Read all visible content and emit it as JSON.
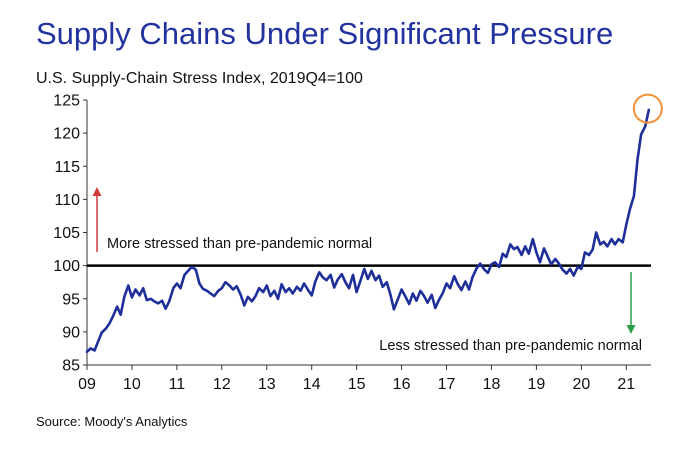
{
  "chart_data": {
    "type": "line",
    "title": "Supply Chains Under Significant Pressure",
    "subtitle": "U.S. Supply-Chain Stress Index, 2019Q4=100",
    "source": "Source: Moody's Analytics",
    "xlim": [
      2009.0,
      2021.55
    ],
    "ylim": [
      85,
      125
    ],
    "y_ticks": [
      85,
      90,
      95,
      100,
      105,
      110,
      115,
      120,
      125
    ],
    "x_ticks": [
      {
        "value": 2009,
        "label": "09"
      },
      {
        "value": 2010,
        "label": "10"
      },
      {
        "value": 2011,
        "label": "11"
      },
      {
        "value": 2012,
        "label": "12"
      },
      {
        "value": 2013,
        "label": "13"
      },
      {
        "value": 2014,
        "label": "14"
      },
      {
        "value": 2015,
        "label": "15"
      },
      {
        "value": 2016,
        "label": "16"
      },
      {
        "value": 2017,
        "label": "17"
      },
      {
        "value": 2018,
        "label": "18"
      },
      {
        "value": 2019,
        "label": "19"
      },
      {
        "value": 2020,
        "label": "20"
      },
      {
        "value": 2021,
        "label": "21"
      }
    ],
    "reference_line": {
      "y": 100
    },
    "annotations": {
      "above": "More stressed than pre-pandemic normal",
      "below": "Less stressed than pre-pandemic normal"
    },
    "series": [
      {
        "color": "#1f2f9a",
        "points": [
          [
            2009.0,
            87.0
          ],
          [
            2009.08,
            87.5
          ],
          [
            2009.17,
            87.2
          ],
          [
            2009.25,
            88.6
          ],
          [
            2009.33,
            89.9
          ],
          [
            2009.42,
            90.5
          ],
          [
            2009.5,
            91.3
          ],
          [
            2009.58,
            92.4
          ],
          [
            2009.67,
            93.8
          ],
          [
            2009.75,
            92.6
          ],
          [
            2009.83,
            95.3
          ],
          [
            2009.92,
            97.0
          ],
          [
            2010.0,
            95.2
          ],
          [
            2010.08,
            96.4
          ],
          [
            2010.17,
            95.5
          ],
          [
            2010.25,
            96.6
          ],
          [
            2010.33,
            94.8
          ],
          [
            2010.42,
            95.0
          ],
          [
            2010.5,
            94.6
          ],
          [
            2010.58,
            94.3
          ],
          [
            2010.67,
            94.7
          ],
          [
            2010.75,
            93.5
          ],
          [
            2010.83,
            94.6
          ],
          [
            2010.92,
            96.6
          ],
          [
            2011.0,
            97.3
          ],
          [
            2011.08,
            96.6
          ],
          [
            2011.17,
            98.6
          ],
          [
            2011.25,
            99.2
          ],
          [
            2011.33,
            99.8
          ],
          [
            2011.42,
            99.4
          ],
          [
            2011.5,
            97.3
          ],
          [
            2011.58,
            96.5
          ],
          [
            2011.67,
            96.2
          ],
          [
            2011.75,
            95.8
          ],
          [
            2011.83,
            95.4
          ],
          [
            2011.92,
            96.2
          ],
          [
            2012.0,
            96.6
          ],
          [
            2012.08,
            97.5
          ],
          [
            2012.17,
            97.0
          ],
          [
            2012.25,
            96.4
          ],
          [
            2012.33,
            96.9
          ],
          [
            2012.42,
            95.6
          ],
          [
            2012.5,
            94.0
          ],
          [
            2012.58,
            95.3
          ],
          [
            2012.67,
            94.6
          ],
          [
            2012.75,
            95.4
          ],
          [
            2012.83,
            96.6
          ],
          [
            2012.92,
            96.0
          ],
          [
            2013.0,
            97.0
          ],
          [
            2013.08,
            95.4
          ],
          [
            2013.17,
            96.2
          ],
          [
            2013.25,
            95.0
          ],
          [
            2013.33,
            97.2
          ],
          [
            2013.42,
            96.0
          ],
          [
            2013.5,
            96.6
          ],
          [
            2013.58,
            95.8
          ],
          [
            2013.67,
            96.8
          ],
          [
            2013.75,
            96.2
          ],
          [
            2013.83,
            97.3
          ],
          [
            2013.92,
            96.3
          ],
          [
            2014.0,
            95.5
          ],
          [
            2014.08,
            97.6
          ],
          [
            2014.17,
            99.0
          ],
          [
            2014.25,
            98.2
          ],
          [
            2014.33,
            97.8
          ],
          [
            2014.42,
            98.6
          ],
          [
            2014.5,
            96.7
          ],
          [
            2014.58,
            97.9
          ],
          [
            2014.67,
            98.7
          ],
          [
            2014.75,
            97.5
          ],
          [
            2014.83,
            96.6
          ],
          [
            2014.92,
            98.6
          ],
          [
            2015.0,
            96.0
          ],
          [
            2015.08,
            97.6
          ],
          [
            2015.17,
            99.5
          ],
          [
            2015.25,
            98.0
          ],
          [
            2015.33,
            99.2
          ],
          [
            2015.42,
            97.8
          ],
          [
            2015.5,
            98.5
          ],
          [
            2015.58,
            96.8
          ],
          [
            2015.67,
            97.5
          ],
          [
            2015.75,
            95.7
          ],
          [
            2015.83,
            93.4
          ],
          [
            2015.92,
            95.0
          ],
          [
            2016.0,
            96.4
          ],
          [
            2016.08,
            95.4
          ],
          [
            2016.17,
            94.2
          ],
          [
            2016.25,
            95.8
          ],
          [
            2016.33,
            94.7
          ],
          [
            2016.42,
            96.2
          ],
          [
            2016.5,
            95.4
          ],
          [
            2016.58,
            94.4
          ],
          [
            2016.67,
            95.6
          ],
          [
            2016.75,
            93.6
          ],
          [
            2016.83,
            94.8
          ],
          [
            2016.92,
            95.9
          ],
          [
            2017.0,
            97.3
          ],
          [
            2017.08,
            96.6
          ],
          [
            2017.17,
            98.4
          ],
          [
            2017.25,
            97.2
          ],
          [
            2017.33,
            96.3
          ],
          [
            2017.42,
            97.6
          ],
          [
            2017.5,
            96.4
          ],
          [
            2017.58,
            98.3
          ],
          [
            2017.67,
            99.6
          ],
          [
            2017.75,
            100.3
          ],
          [
            2017.83,
            99.5
          ],
          [
            2017.92,
            98.9
          ],
          [
            2018.0,
            100.2
          ],
          [
            2018.08,
            100.5
          ],
          [
            2018.17,
            99.8
          ],
          [
            2018.25,
            101.8
          ],
          [
            2018.33,
            101.3
          ],
          [
            2018.42,
            103.2
          ],
          [
            2018.5,
            102.5
          ],
          [
            2018.58,
            102.8
          ],
          [
            2018.67,
            101.6
          ],
          [
            2018.75,
            102.9
          ],
          [
            2018.83,
            101.8
          ],
          [
            2018.92,
            104.0
          ],
          [
            2019.0,
            102.0
          ],
          [
            2019.08,
            100.5
          ],
          [
            2019.17,
            102.6
          ],
          [
            2019.25,
            101.4
          ],
          [
            2019.33,
            100.2
          ],
          [
            2019.42,
            101.0
          ],
          [
            2019.5,
            100.3
          ],
          [
            2019.58,
            99.4
          ],
          [
            2019.67,
            98.8
          ],
          [
            2019.75,
            99.5
          ],
          [
            2019.83,
            98.5
          ],
          [
            2019.92,
            99.8
          ],
          [
            2020.0,
            99.5
          ],
          [
            2020.08,
            102.0
          ],
          [
            2020.17,
            101.6
          ],
          [
            2020.25,
            102.4
          ],
          [
            2020.33,
            105.0
          ],
          [
            2020.42,
            103.2
          ],
          [
            2020.5,
            103.6
          ],
          [
            2020.58,
            102.9
          ],
          [
            2020.67,
            104.0
          ],
          [
            2020.75,
            103.2
          ],
          [
            2020.83,
            104.0
          ],
          [
            2020.92,
            103.5
          ],
          [
            2021.0,
            106.2
          ],
          [
            2021.08,
            108.5
          ],
          [
            2021.17,
            110.5
          ],
          [
            2021.25,
            116.0
          ],
          [
            2021.33,
            119.8
          ],
          [
            2021.42,
            121.0
          ],
          [
            2021.5,
            123.5
          ]
        ]
      }
    ],
    "highlight": {
      "x": 2021.48,
      "y": 123.7,
      "color": "#f0913a"
    }
  }
}
